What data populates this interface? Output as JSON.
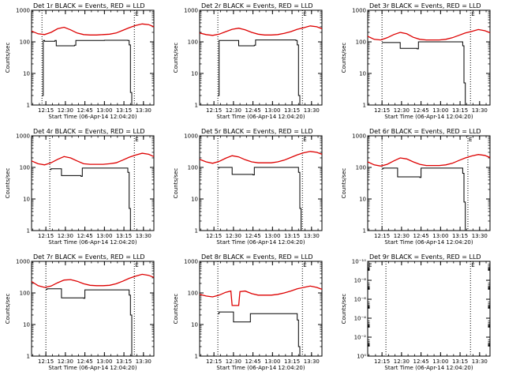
{
  "chart_data": [
    {
      "type": "line",
      "title": "Det 1r BLACK = Events, RED = LLD",
      "xlabel": "Start Time (06-Apr-14 12:04:20)",
      "ylabel": "Counts/sec",
      "yscale": "log",
      "ylim": [
        1,
        1000
      ],
      "yticks": [
        1,
        10,
        100,
        1000
      ],
      "ytick_labels": [
        "1",
        "10",
        "100",
        "1000"
      ],
      "xlim_min": [
        0,
        94
      ],
      "xticks_min": [
        11,
        26,
        41,
        56,
        71,
        86
      ],
      "xtick_labels": [
        "12:15",
        "12:30",
        "12:45",
        "13:00",
        "13:15",
        "13:30"
      ],
      "vlines_min": [
        8,
        79
      ],
      "markers": [
        {
          "x_min": 79,
          "label": "E"
        }
      ],
      "series": [
        {
          "name": "Events",
          "color": "#000000",
          "x_min": [
            8,
            9,
            10,
            18,
            19,
            33,
            34,
            56,
            57,
            74,
            75,
            76,
            77
          ],
          "y": [
            2,
            110,
            105,
            110,
            75,
            78,
            110,
            112,
            112,
            110,
            80,
            2.5,
            0
          ]
        },
        {
          "name": "LLD",
          "color": "#dd0000",
          "x_min": [
            0,
            5,
            10,
            15,
            20,
            25,
            30,
            35,
            40,
            45,
            50,
            55,
            60,
            65,
            70,
            75,
            80,
            85,
            90,
            94
          ],
          "y": [
            220,
            180,
            170,
            200,
            260,
            290,
            240,
            190,
            170,
            165,
            165,
            170,
            175,
            190,
            230,
            280,
            330,
            370,
            350,
            300
          ]
        }
      ]
    },
    {
      "type": "line",
      "title": "Det 2r BLACK = Events, RED = LLD",
      "xlabel": "Start Time (06-Apr-14 12:04:20)",
      "ylabel": "Counts/sec",
      "yscale": "log",
      "ylim": [
        1,
        1000
      ],
      "yticks": [
        1,
        10,
        100,
        1000
      ],
      "ytick_labels": [
        "1",
        "10",
        "100",
        "1000"
      ],
      "xlim_min": [
        0,
        94
      ],
      "xticks_min": [
        11,
        26,
        41,
        56,
        71,
        86
      ],
      "xtick_labels": [
        "12:15",
        "12:30",
        "12:45",
        "13:00",
        "13:15",
        "13:30"
      ],
      "vlines_min": [
        14,
        79
      ],
      "markers": [
        {
          "x_min": 79,
          "label": "E"
        }
      ],
      "series": [
        {
          "name": "Events",
          "color": "#000000",
          "x_min": [
            14,
            15,
            16,
            29,
            30,
            42,
            43,
            74,
            75,
            76,
            77
          ],
          "y": [
            2,
            110,
            110,
            110,
            75,
            78,
            115,
            110,
            80,
            2,
            0
          ]
        },
        {
          "name": "LLD",
          "color": "#dd0000",
          "x_min": [
            0,
            5,
            10,
            15,
            20,
            25,
            30,
            35,
            40,
            45,
            50,
            55,
            60,
            65,
            70,
            75,
            80,
            85,
            90,
            94
          ],
          "y": [
            190,
            170,
            160,
            175,
            210,
            250,
            270,
            240,
            200,
            175,
            165,
            165,
            170,
            185,
            210,
            250,
            280,
            320,
            300,
            260
          ]
        }
      ]
    },
    {
      "type": "line",
      "title": "Det 3r BLACK = Events, RED = LLD",
      "xlabel": "Start Time (06-Apr-14 12:04:20)",
      "ylabel": "Counts/sec",
      "yscale": "log",
      "ylim": [
        1,
        1000
      ],
      "yticks": [
        1,
        10,
        100,
        1000
      ],
      "ytick_labels": [
        "1",
        "10",
        "100",
        "1000"
      ],
      "xlim_min": [
        0,
        94
      ],
      "xticks_min": [
        11,
        26,
        41,
        56,
        71,
        86
      ],
      "xtick_labels": [
        "12:15",
        "12:30",
        "12:45",
        "13:00",
        "13:15",
        "13:30"
      ],
      "vlines_min": [
        11,
        79
      ],
      "markers": [
        {
          "x_min": 79,
          "label": "E"
        }
      ],
      "series": [
        {
          "name": "Events",
          "color": "#000000",
          "x_min": [
            11,
            12,
            24,
            25,
            38,
            39,
            72,
            73,
            74,
            75
          ],
          "y": [
            95,
            95,
            95,
            62,
            60,
            100,
            100,
            75,
            5,
            0
          ]
        },
        {
          "name": "LLD",
          "color": "#dd0000",
          "x_min": [
            0,
            5,
            10,
            15,
            20,
            25,
            30,
            35,
            40,
            45,
            50,
            55,
            60,
            65,
            70,
            75,
            80,
            85,
            90,
            94
          ],
          "y": [
            150,
            120,
            115,
            135,
            170,
            200,
            180,
            140,
            120,
            115,
            115,
            115,
            120,
            135,
            160,
            190,
            215,
            245,
            225,
            195
          ]
        }
      ]
    },
    {
      "type": "line",
      "title": "Det 4r BLACK = Events, RED = LLD",
      "xlabel": "Start Time (06-Apr-14 12:04:20)",
      "ylabel": "Counts/sec",
      "yscale": "log",
      "ylim": [
        1,
        1000
      ],
      "yticks": [
        1,
        10,
        100,
        1000
      ],
      "ytick_labels": [
        "1",
        "10",
        "100",
        "1000"
      ],
      "xlim_min": [
        0,
        94
      ],
      "xticks_min": [
        11,
        26,
        41,
        56,
        71,
        86
      ],
      "xtick_labels": [
        "12:15",
        "12:30",
        "12:45",
        "13:00",
        "13:15",
        "13:30"
      ],
      "vlines_min": [
        14,
        79
      ],
      "markers": [
        {
          "x_min": 79,
          "label": "E"
        }
      ],
      "series": [
        {
          "name": "Events",
          "color": "#000000",
          "x_min": [
            14,
            15,
            22,
            23,
            38,
            39,
            73,
            74,
            75,
            76
          ],
          "y": [
            85,
            90,
            90,
            55,
            52,
            95,
            95,
            70,
            5,
            0
          ]
        },
        {
          "name": "LLD",
          "color": "#dd0000",
          "x_min": [
            0,
            5,
            10,
            15,
            20,
            25,
            30,
            35,
            40,
            45,
            50,
            55,
            60,
            65,
            70,
            75,
            80,
            85,
            90,
            94
          ],
          "y": [
            160,
            130,
            120,
            140,
            180,
            220,
            200,
            160,
            130,
            125,
            125,
            125,
            130,
            140,
            170,
            210,
            245,
            280,
            260,
            220
          ]
        }
      ]
    },
    {
      "type": "line",
      "title": "Det 5r BLACK = Events, RED = LLD",
      "xlabel": "Start Time (06-Apr-14 12:04:20)",
      "ylabel": "Counts/sec",
      "yscale": "log",
      "ylim": [
        1,
        1000
      ],
      "yticks": [
        1,
        10,
        100,
        1000
      ],
      "ytick_labels": [
        "1",
        "10",
        "100",
        "1000"
      ],
      "xlim_min": [
        0,
        94
      ],
      "xticks_min": [
        11,
        26,
        41,
        56,
        71,
        86
      ],
      "xtick_labels": [
        "12:15",
        "12:30",
        "12:45",
        "13:00",
        "13:15",
        "13:30"
      ],
      "vlines_min": [
        14,
        79
      ],
      "markers": [
        {
          "x_min": 79,
          "label": "E"
        }
      ],
      "series": [
        {
          "name": "Events",
          "color": "#000000",
          "x_min": [
            14,
            15,
            24,
            25,
            41,
            42,
            75,
            76,
            77,
            78
          ],
          "y": [
            95,
            100,
            100,
            60,
            58,
            100,
            100,
            70,
            5,
            0
          ]
        },
        {
          "name": "LLD",
          "color": "#dd0000",
          "x_min": [
            0,
            5,
            10,
            15,
            20,
            25,
            30,
            35,
            40,
            45,
            50,
            55,
            60,
            65,
            70,
            75,
            80,
            85,
            90,
            94
          ],
          "y": [
            180,
            150,
            135,
            155,
            195,
            235,
            215,
            175,
            150,
            140,
            140,
            140,
            150,
            170,
            205,
            250,
            290,
            320,
            300,
            260
          ]
        }
      ]
    },
    {
      "type": "line",
      "title": "Det 6r BLACK = Events, RED = LLD",
      "xlabel": "Start Time (06-Apr-14 12:04:20)",
      "ylabel": "Counts/sec",
      "yscale": "log",
      "ylim": [
        1,
        1000
      ],
      "yticks": [
        1,
        10,
        100,
        1000
      ],
      "ytick_labels": [
        "1",
        "10",
        "100",
        "1000"
      ],
      "xlim_min": [
        0,
        94
      ],
      "xticks_min": [
        11,
        26,
        41,
        56,
        71,
        86
      ],
      "xtick_labels": [
        "12:15",
        "12:30",
        "12:45",
        "13:00",
        "13:15",
        "13:30"
      ],
      "vlines_min": [
        11,
        77
      ],
      "markers": [
        {
          "x_min": 77,
          "label": "E"
        }
      ],
      "series": [
        {
          "name": "Events",
          "color": "#000000",
          "x_min": [
            11,
            12,
            22,
            23,
            40,
            41,
            72,
            73,
            74,
            75
          ],
          "y": [
            90,
            95,
            95,
            50,
            48,
            95,
            95,
            65,
            8,
            0
          ]
        },
        {
          "name": "LLD",
          "color": "#dd0000",
          "x_min": [
            0,
            5,
            10,
            15,
            20,
            25,
            30,
            35,
            40,
            45,
            50,
            55,
            60,
            65,
            70,
            75,
            80,
            85,
            90,
            94
          ],
          "y": [
            150,
            120,
            110,
            125,
            160,
            200,
            185,
            150,
            125,
            115,
            115,
            115,
            120,
            135,
            165,
            200,
            230,
            255,
            240,
            205
          ]
        }
      ]
    },
    {
      "type": "line",
      "title": "Det 7r BLACK = Events, RED = LLD",
      "xlabel": "Start Time (06-Apr-14 12:04:20)",
      "ylabel": "Counts/sec",
      "yscale": "log",
      "ylim": [
        1,
        1000
      ],
      "yticks": [
        1,
        10,
        100,
        1000
      ],
      "ytick_labels": [
        "1",
        "10",
        "100",
        "1000"
      ],
      "xlim_min": [
        0,
        94
      ],
      "xticks_min": [
        11,
        26,
        41,
        56,
        71,
        86
      ],
      "xtick_labels": [
        "12:15",
        "12:30",
        "12:45",
        "13:00",
        "13:15",
        "13:30"
      ],
      "vlines_min": [
        11,
        79
      ],
      "markers": [
        {
          "x_min": 79,
          "label": "E"
        }
      ],
      "series": [
        {
          "name": "Events",
          "color": "#000000",
          "x_min": [
            11,
            12,
            22,
            23,
            40,
            41,
            74,
            75,
            76,
            77
          ],
          "y": [
            130,
            135,
            135,
            70,
            68,
            125,
            125,
            85,
            20,
            0
          ]
        },
        {
          "name": "LLD",
          "color": "#dd0000",
          "x_min": [
            0,
            5,
            10,
            15,
            20,
            25,
            30,
            35,
            40,
            45,
            50,
            55,
            60,
            65,
            70,
            75,
            80,
            85,
            90,
            94
          ],
          "y": [
            230,
            170,
            150,
            165,
            210,
            255,
            265,
            235,
            195,
            175,
            170,
            170,
            175,
            195,
            235,
            290,
            340,
            390,
            360,
            310
          ]
        }
      ]
    },
    {
      "type": "line",
      "title": "Det 8r BLACK = Events, RED = LLD",
      "xlabel": "Start Time (06-Apr-14 12:04:20)",
      "ylabel": "Counts/sec",
      "yscale": "log",
      "ylim": [
        1,
        1000
      ],
      "yticks": [
        1,
        10,
        100,
        1000
      ],
      "ytick_labels": [
        "1",
        "10",
        "100",
        "1000"
      ],
      "xlim_min": [
        0,
        94
      ],
      "xticks_min": [
        11,
        26,
        41,
        56,
        71,
        86
      ],
      "xtick_labels": [
        "12:15",
        "12:30",
        "12:45",
        "13:00",
        "13:15",
        "13:30"
      ],
      "vlines_min": [
        14,
        79
      ],
      "markers": [
        {
          "x_min": 79,
          "label": "E"
        }
      ],
      "series": [
        {
          "name": "Events",
          "color": "#000000",
          "x_min": [
            14,
            15,
            25,
            26,
            38,
            39,
            74,
            75,
            76,
            77
          ],
          "y": [
            22,
            25,
            25,
            12,
            12,
            22,
            22,
            14,
            2,
            0
          ]
        },
        {
          "name": "LLD",
          "color": "#dd0000",
          "x_min": [
            0,
            5,
            10,
            15,
            20,
            24,
            25,
            30,
            31,
            35,
            40,
            45,
            50,
            55,
            60,
            65,
            70,
            75,
            80,
            85,
            90,
            94
          ],
          "y": [
            90,
            80,
            75,
            85,
            105,
            115,
            40,
            40,
            110,
            115,
            95,
            85,
            85,
            85,
            90,
            100,
            115,
            135,
            150,
            165,
            150,
            130
          ]
        }
      ]
    },
    {
      "type": "line",
      "title": "Det 9r BLACK = Events, RED = LLD",
      "xlabel": "Start Time (06-Apr-14 12:04:20)",
      "ylabel": "Counts/sec",
      "yscale": "log",
      "ylim": [
        1,
        1e-10
      ],
      "yticks": [
        1,
        0.01,
        0.0001,
        1e-06,
        1e-08,
        1e-10
      ],
      "ytick_labels": [
        "10⁰",
        "10⁻²",
        "10⁻⁴",
        "10⁻⁶",
        "10⁻⁸",
        "10⁻¹⁰"
      ],
      "xlim_min": [
        0,
        94
      ],
      "xticks_min": [
        11,
        26,
        41,
        56,
        71,
        86
      ],
      "xtick_labels": [
        "12:15",
        "12:30",
        "12:45",
        "13:00",
        "13:15",
        "13:30"
      ],
      "vlines_min": [
        14,
        79
      ],
      "markers": [
        {
          "x_min": 0,
          "label": "E"
        },
        {
          "x_min": 79,
          "label": "E"
        }
      ],
      "series": []
    }
  ]
}
